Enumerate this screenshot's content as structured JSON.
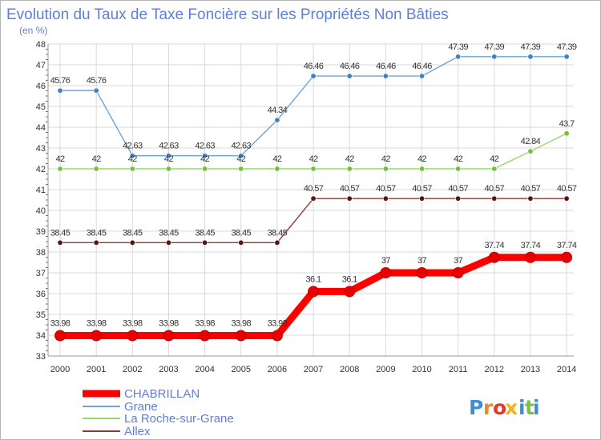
{
  "chart_data": {
    "type": "line",
    "title": "Evolution du Taux de Taxe Foncière sur les Propriétés Non Bâties",
    "unit_label": "(en %)",
    "xlabel": "",
    "ylabel": "",
    "x": [
      "2000",
      "2001",
      "2002",
      "2003",
      "2004",
      "2005",
      "2006",
      "2007",
      "2008",
      "2009",
      "2010",
      "2011",
      "2012",
      "2013",
      "2014"
    ],
    "ylim": [
      33,
      48
    ],
    "yticks": [
      33,
      34,
      35,
      36,
      37,
      38,
      39,
      40,
      41,
      42,
      43,
      44,
      45,
      46,
      47,
      48
    ],
    "grid": true,
    "legend_position": "bottom-left",
    "series": [
      {
        "name": "CHABRILLAN",
        "color": "#ff0000",
        "marker_color": "#e60000",
        "labels": [
          "33.98",
          "33.98",
          "33.98",
          "33.98",
          "33.98",
          "33.98",
          "33.98",
          "36.1",
          "36.1",
          "37",
          "37",
          "37",
          "37.74",
          "37.74",
          "37.74"
        ],
        "values": [
          33.98,
          33.98,
          33.98,
          33.98,
          33.98,
          33.98,
          33.98,
          36.1,
          36.1,
          37,
          37,
          37,
          37.74,
          37.74,
          37.74
        ]
      },
      {
        "name": "Grane",
        "color": "#6fa4d8",
        "marker_color": "#3d82c4",
        "labels": [
          "45.76",
          "45.76",
          "42.63",
          "42.63",
          "42.63",
          "42.63",
          "44.34",
          "46.46",
          "46.46",
          "46.46",
          "46.46",
          "47.39",
          "47.39",
          "47.39",
          "47.39"
        ],
        "values": [
          45.76,
          45.76,
          42.63,
          42.63,
          42.63,
          42.63,
          44.34,
          46.46,
          46.46,
          46.46,
          46.46,
          47.39,
          47.39,
          47.39,
          47.39
        ]
      },
      {
        "name": "La Roche-sur-Grane",
        "color": "#9ad86a",
        "marker_color": "#72c23a",
        "labels": [
          "42",
          "42",
          "42",
          "42",
          "42",
          "42",
          "42",
          "42",
          "42",
          "42",
          "42",
          "42",
          "42",
          "42.84",
          "43.7"
        ],
        "values": [
          42,
          42,
          42,
          42,
          42,
          42,
          42,
          42,
          42,
          42,
          42,
          42,
          42,
          42.84,
          43.7
        ]
      },
      {
        "name": "Allex",
        "color": "#8b3a3a",
        "marker_color": "#5a1414",
        "labels": [
          "38.45",
          "38.45",
          "38.45",
          "38.45",
          "38.45",
          "38.45",
          "38.45",
          "40.57",
          "40.57",
          "40.57",
          "40.57",
          "40.57",
          "40.57",
          "40.57",
          "40.57"
        ],
        "values": [
          38.45,
          38.45,
          38.45,
          38.45,
          38.45,
          38.45,
          38.45,
          40.57,
          40.57,
          40.57,
          40.57,
          40.57,
          40.57,
          40.57,
          40.57
        ]
      }
    ]
  },
  "logo": {
    "text": "Proxiti",
    "colors": [
      "#3a8fd6",
      "#f08a24",
      "#e23a2e",
      "#f6b21b",
      "#3a8fd6",
      "#7cc242",
      "#3a8fd6"
    ]
  }
}
